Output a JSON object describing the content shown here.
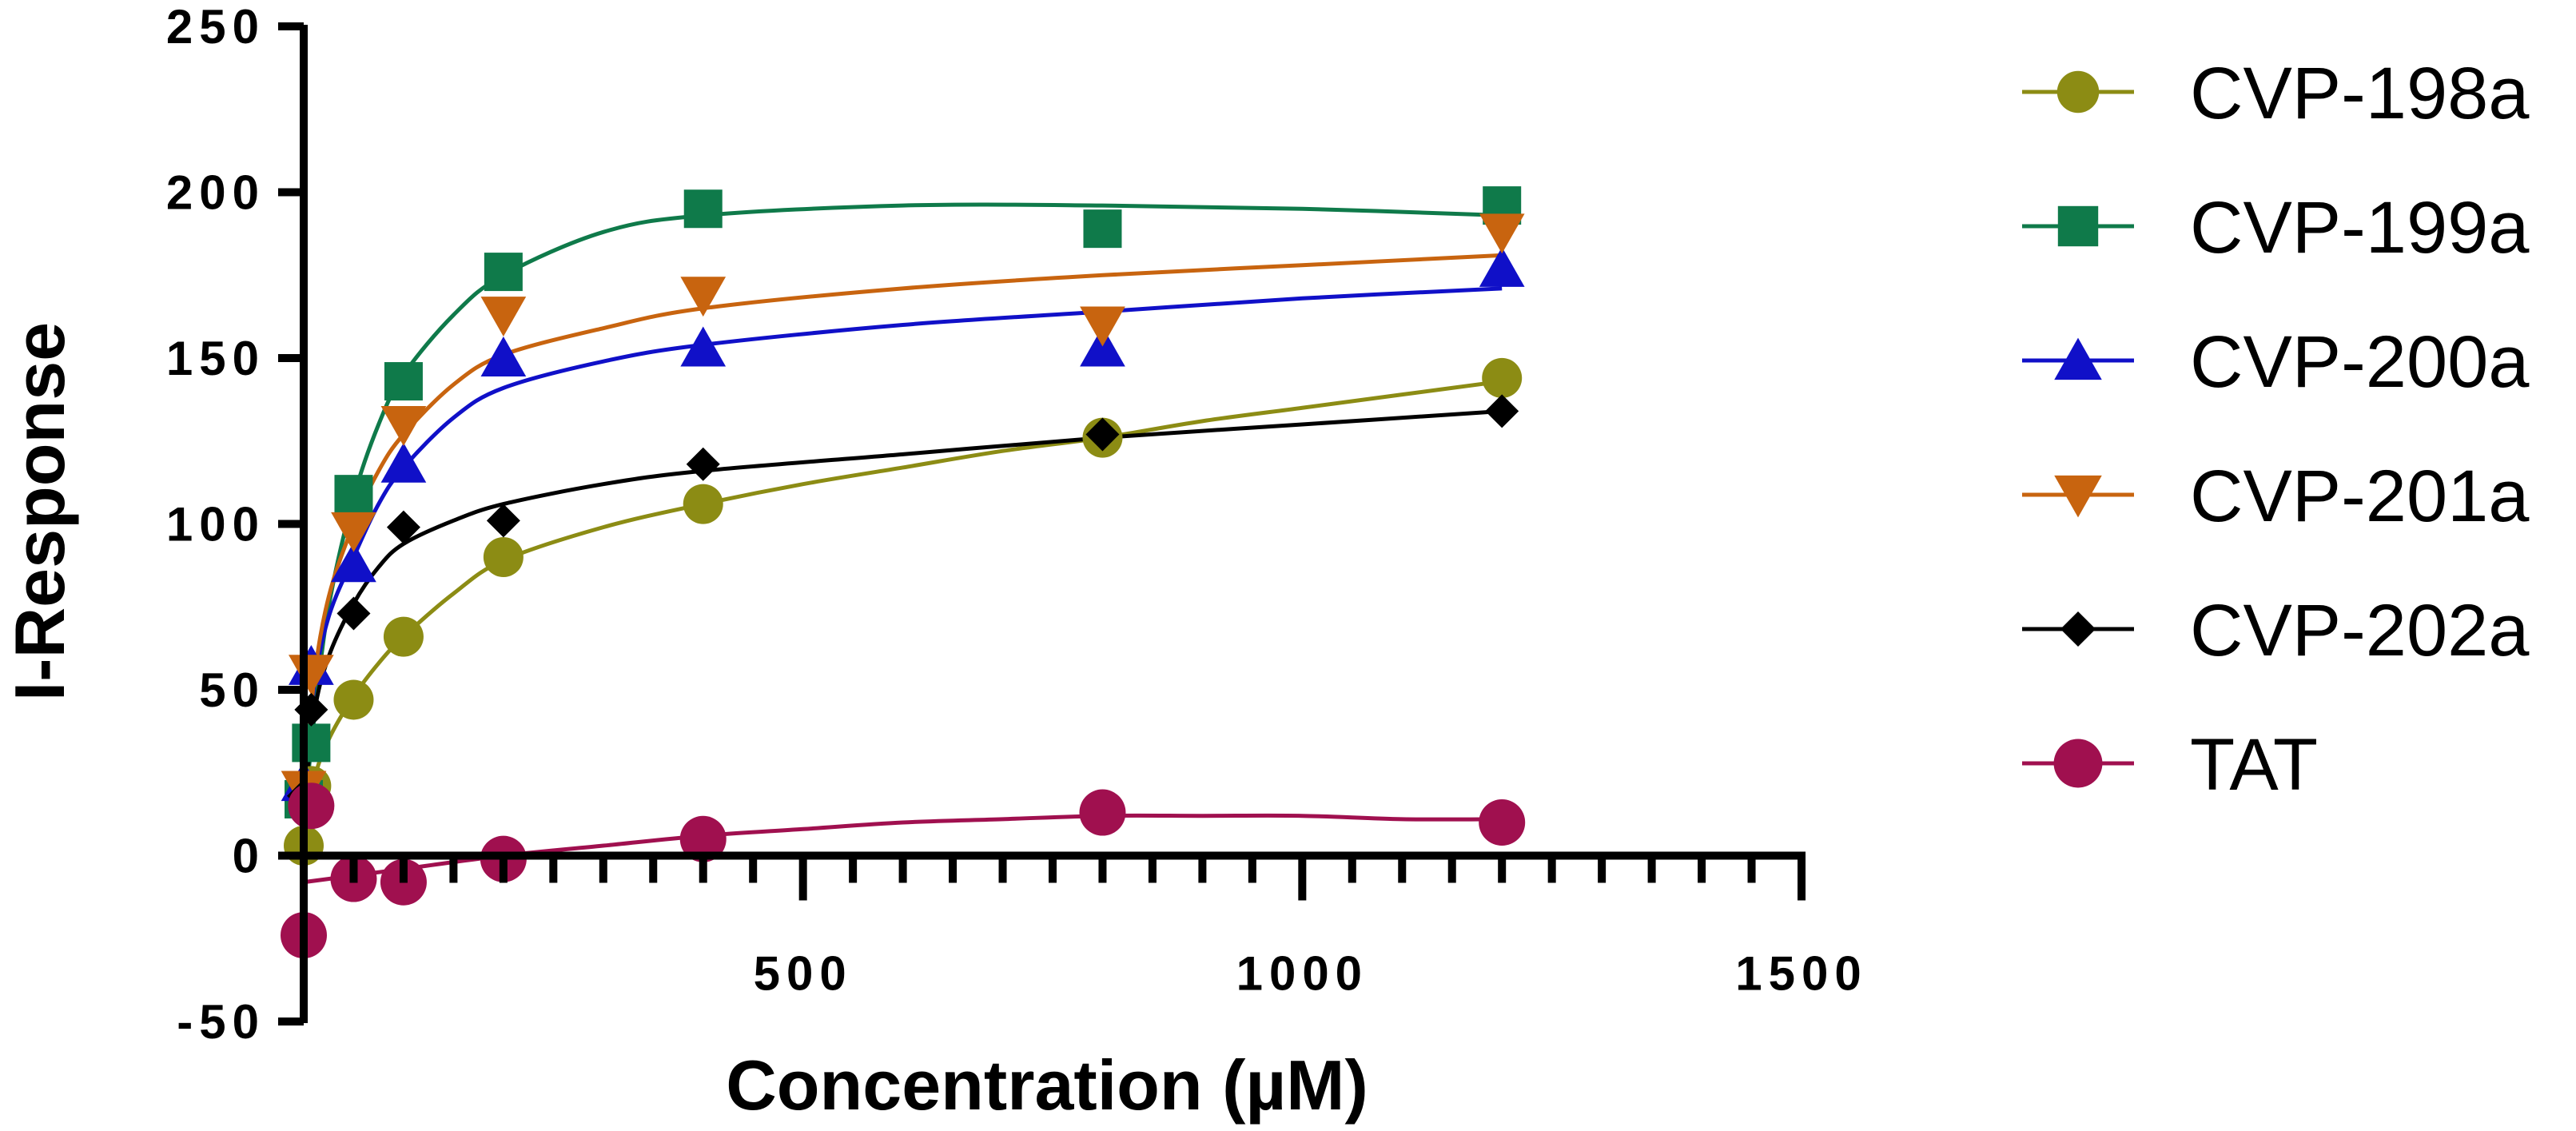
{
  "chart_data": {
    "type": "scatter",
    "title": "",
    "xlabel": "Concentration (µM)",
    "ylabel": "I-Response",
    "xlim": [
      0,
      1500
    ],
    "ylim": [
      -50,
      250
    ],
    "x_ticks": [
      500,
      1000,
      1500
    ],
    "x_tick_labels": [
      "500",
      "1000",
      "1500"
    ],
    "y_ticks": [
      -50,
      0,
      50,
      100,
      150,
      200,
      250
    ],
    "y_tick_labels": [
      "-50",
      "0",
      "50",
      "100",
      "150",
      "200",
      "250"
    ],
    "legend_position": "right",
    "series": [
      {
        "name": "CVP-198a",
        "color": "#8c8c14",
        "marker": "circle",
        "x": [
          0,
          7.5,
          50,
          100,
          200,
          400,
          800,
          1200
        ],
        "y": [
          3,
          21,
          47,
          66,
          90,
          106,
          126,
          144
        ],
        "curve": [
          [
            0,
            0
          ],
          [
            10,
            22
          ],
          [
            25,
            35
          ],
          [
            50,
            48
          ],
          [
            75,
            58
          ],
          [
            100,
            66
          ],
          [
            150,
            79
          ],
          [
            200,
            89
          ],
          [
            300,
            99
          ],
          [
            400,
            106
          ],
          [
            500,
            112
          ],
          [
            600,
            117
          ],
          [
            700,
            122
          ],
          [
            800,
            126
          ],
          [
            900,
            131
          ],
          [
            1000,
            135
          ],
          [
            1100,
            139
          ],
          [
            1200,
            143
          ]
        ]
      },
      {
        "name": "CVP-199a",
        "color": "#0f7a4a",
        "marker": "square",
        "x": [
          0,
          7.5,
          50,
          100,
          200,
          400,
          800,
          1200
        ],
        "y": [
          17,
          34,
          109,
          143,
          176,
          195,
          189,
          196
        ],
        "curve": [
          [
            0,
            10
          ],
          [
            10,
            40
          ],
          [
            25,
            75
          ],
          [
            50,
            108
          ],
          [
            75,
            130
          ],
          [
            100,
            145
          ],
          [
            150,
            163
          ],
          [
            200,
            175
          ],
          [
            300,
            188
          ],
          [
            400,
            193
          ],
          [
            600,
            196
          ],
          [
            800,
            196
          ],
          [
            1000,
            195
          ],
          [
            1200,
            193
          ]
        ]
      },
      {
        "name": "CVP-200a",
        "color": "#1010c8",
        "marker": "triangle-up",
        "x": [
          0,
          7.5,
          50,
          100,
          200,
          400,
          800,
          1200
        ],
        "y": [
          22,
          57,
          88,
          118,
          150,
          153,
          153,
          177
        ],
        "curve": [
          [
            0,
            15
          ],
          [
            10,
            50
          ],
          [
            25,
            72
          ],
          [
            50,
            90
          ],
          [
            75,
            106
          ],
          [
            100,
            117
          ],
          [
            150,
            132
          ],
          [
            200,
            141
          ],
          [
            300,
            149
          ],
          [
            400,
            154
          ],
          [
            600,
            160
          ],
          [
            800,
            164
          ],
          [
            1000,
            168
          ],
          [
            1200,
            171
          ]
        ]
      },
      {
        "name": "CVP-201a",
        "color": "#c8640f",
        "marker": "triangle-down",
        "x": [
          0,
          7.5,
          50,
          100,
          200,
          400,
          800,
          1200
        ],
        "y": [
          20,
          55,
          98,
          130,
          163,
          169,
          160,
          188
        ],
        "curve": [
          [
            0,
            15
          ],
          [
            10,
            52
          ],
          [
            25,
            78
          ],
          [
            50,
            100
          ],
          [
            75,
            116
          ],
          [
            100,
            127
          ],
          [
            150,
            142
          ],
          [
            200,
            151
          ],
          [
            300,
            159
          ],
          [
            400,
            165
          ],
          [
            600,
            171
          ],
          [
            800,
            175
          ],
          [
            1000,
            178
          ],
          [
            1200,
            181
          ]
        ]
      },
      {
        "name": "CVP-202a",
        "color": "#000000",
        "marker": "diamond",
        "x": [
          0,
          7.5,
          50,
          100,
          200,
          400,
          800,
          1200
        ],
        "y": [
          18,
          44,
          73,
          99,
          101,
          118,
          127,
          134
        ],
        "curve": [
          [
            0,
            12
          ],
          [
            10,
            42
          ],
          [
            25,
            60
          ],
          [
            50,
            76
          ],
          [
            75,
            87
          ],
          [
            100,
            94
          ],
          [
            150,
            101
          ],
          [
            200,
            106
          ],
          [
            300,
            112
          ],
          [
            400,
            116
          ],
          [
            600,
            121
          ],
          [
            800,
            126
          ],
          [
            1000,
            130
          ],
          [
            1200,
            134
          ]
        ]
      },
      {
        "name": "TAT",
        "color": "#a0104f",
        "marker": "circle",
        "x": [
          0,
          7.5,
          50,
          100,
          200,
          400,
          800,
          1200
        ],
        "y": [
          -24,
          15,
          -7,
          -8,
          -1,
          5,
          13,
          10
        ],
        "curve": [
          [
            0,
            -8
          ],
          [
            50,
            -6
          ],
          [
            100,
            -4
          ],
          [
            200,
            0
          ],
          [
            300,
            3
          ],
          [
            400,
            6
          ],
          [
            500,
            8
          ],
          [
            600,
            10
          ],
          [
            700,
            11
          ],
          [
            800,
            12
          ],
          [
            900,
            12
          ],
          [
            1000,
            12
          ],
          [
            1100,
            11
          ],
          [
            1200,
            11
          ]
        ]
      }
    ]
  }
}
